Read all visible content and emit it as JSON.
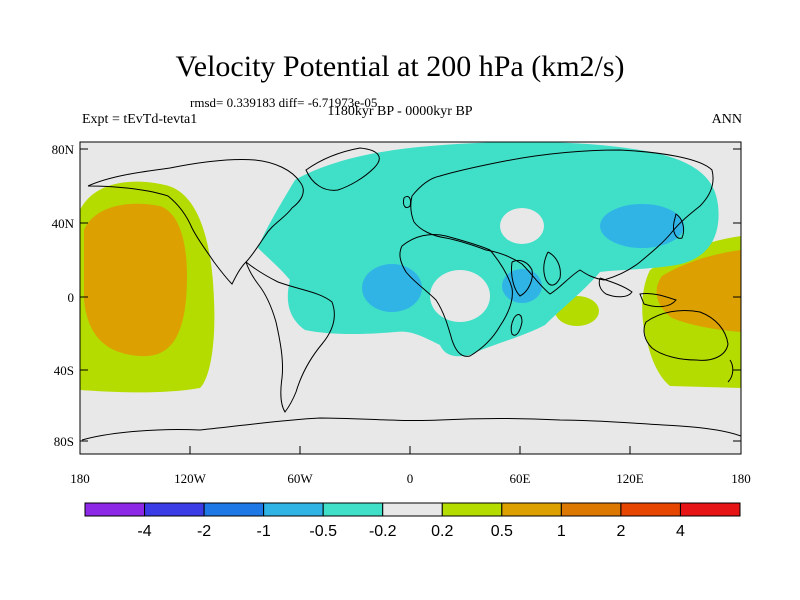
{
  "header": {
    "title": "Velocity Potential at 200 hPa (km2/s)",
    "stats": "rmsd= 0.339183 diff= -6.71973e-05",
    "subtitle": "1180kyr BP - 0000kyr BP",
    "expt": "Expt = tEvTd-tevta1",
    "season": "ANN"
  },
  "map": {
    "lon_ticks": [
      "180",
      "120W",
      "60W",
      "0",
      "60E",
      "120E",
      "180"
    ],
    "lat_ticks": [
      "80N",
      "40N",
      "0",
      "40S",
      "80S"
    ],
    "colors": {
      "neutral": "#e8e8e8",
      "neg_small": "#40e0c8",
      "neg_mid": "#30b4e6",
      "pos_small": "#b4dc00",
      "pos_mid": "#dca000",
      "coast": "#000000"
    }
  },
  "colorbar": {
    "colors": [
      "#8c28e6",
      "#3c3ce6",
      "#1e78e6",
      "#30b4e6",
      "#40e0c8",
      "#e8e8e8",
      "#b4dc00",
      "#dca000",
      "#dc7800",
      "#e64600",
      "#e61414"
    ],
    "labels": [
      "-4",
      "-2",
      "-1",
      "-0.5",
      "-0.2",
      "0.2",
      "0.5",
      "1",
      "2",
      "4"
    ]
  }
}
